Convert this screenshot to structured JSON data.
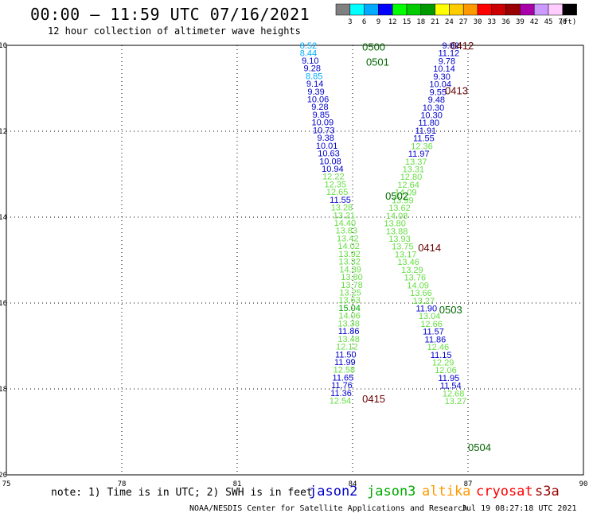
{
  "title": "00:00 – 11:59 UTC 07/16/2021",
  "subtitle": "12 hour collection of altimeter wave heights",
  "note": "note: 1) Time is in UTC; 2) SWH is in feet",
  "credit": "NOAA/NESDIS Center for Satellite Applications and Research",
  "timestamp": "Jul 19 08:27:18 UTC 2021",
  "legend": [
    {
      "label": "jason2",
      "color": "#0000cc"
    },
    {
      "label": "jason3",
      "color": "#00aa00"
    },
    {
      "label": "altika",
      "color": "#ff9900"
    },
    {
      "label": "cryosat",
      "color": "#ff0000"
    },
    {
      "label": "s3a",
      "color": "#990000"
    }
  ],
  "colorbar": {
    "unit": "(ft)",
    "ticks": [
      "3",
      "6",
      "9",
      "12",
      "15",
      "18",
      "21",
      "24",
      "27",
      "30",
      "33",
      "36",
      "39",
      "42",
      "45",
      "70"
    ],
    "colors": [
      "#808080",
      "#00ffff",
      "#00aaff",
      "#0000ff",
      "#00ff00",
      "#00cc00",
      "#009900",
      "#ffff00",
      "#ffcc00",
      "#ff9900",
      "#ff0000",
      "#cc0000",
      "#990000",
      "#aa00aa",
      "#cc99ff",
      "#ffccff",
      "#000000"
    ]
  },
  "chart_data": {
    "type": "scatter",
    "title": "00:00 – 11:59 UTC 07/16/2021",
    "subtitle": "12 hour collection of altimeter wave heights",
    "xlabel": "",
    "ylabel": "",
    "xlim": [
      75,
      90
    ],
    "ylim": [
      -20,
      -10
    ],
    "x_ticks": [
      "75",
      "78",
      "81",
      "84",
      "87",
      "90"
    ],
    "y_ticks": [
      "-10",
      "-12",
      "-14",
      "-16",
      "-18",
      "-20"
    ],
    "grid": true,
    "legend_position": "bottom",
    "time_labels": [
      {
        "text": "0500",
        "x": 84.55,
        "y": -10.03,
        "color": "#006600"
      },
      {
        "text": "0501",
        "x": 84.65,
        "y": -10.38,
        "color": "#006600"
      },
      {
        "text": "0502",
        "x": 85.15,
        "y": -13.5,
        "color": "#006600"
      },
      {
        "text": "0503",
        "x": 86.55,
        "y": -16.15,
        "color": "#006600"
      },
      {
        "text": "0504",
        "x": 87.3,
        "y": -19.35,
        "color": "#006600"
      },
      {
        "text": "0412",
        "x": 86.85,
        "y": -10.0,
        "color": "#660000"
      },
      {
        "text": "0413",
        "x": 86.7,
        "y": -11.05,
        "color": "#660000"
      },
      {
        "text": "0414",
        "x": 86.0,
        "y": -14.7,
        "color": "#660000"
      },
      {
        "text": "0415",
        "x": 84.55,
        "y": -18.22,
        "color": "#660000"
      }
    ],
    "series": [
      {
        "name": "Pass 0500-0504 (western track)",
        "points": [
          {
            "x": 82.85,
            "y": -10.0,
            "v": "8.52",
            "color": "#00aaff"
          },
          {
            "x": 82.85,
            "y": -10.18,
            "v": "8.44",
            "color": "#00aaff"
          },
          {
            "x": 82.9,
            "y": -10.35,
            "v": "9.10",
            "color": "#0000cc"
          },
          {
            "x": 82.95,
            "y": -10.53,
            "v": "9.28",
            "color": "#0000cc"
          },
          {
            "x": 83.0,
            "y": -10.71,
            "v": "8.85",
            "color": "#00aaff"
          },
          {
            "x": 83.02,
            "y": -10.89,
            "v": "9.14",
            "color": "#0000cc"
          },
          {
            "x": 83.05,
            "y": -11.07,
            "v": "9.39",
            "color": "#0000cc"
          },
          {
            "x": 83.1,
            "y": -11.25,
            "v": "10.06",
            "color": "#0000cc"
          },
          {
            "x": 83.15,
            "y": -11.43,
            "v": "9.28",
            "color": "#0000cc"
          },
          {
            "x": 83.18,
            "y": -11.61,
            "v": "9.85",
            "color": "#0000cc"
          },
          {
            "x": 83.22,
            "y": -11.79,
            "v": "10.09",
            "color": "#0000cc"
          },
          {
            "x": 83.25,
            "y": -11.97,
            "v": "10.73",
            "color": "#0000cc"
          },
          {
            "x": 83.3,
            "y": -12.15,
            "v": "9.38",
            "color": "#0000cc"
          },
          {
            "x": 83.33,
            "y": -12.33,
            "v": "10.01",
            "color": "#0000cc"
          },
          {
            "x": 83.38,
            "y": -12.51,
            "v": "10.63",
            "color": "#0000cc"
          },
          {
            "x": 83.42,
            "y": -12.69,
            "v": "10.08",
            "color": "#0000cc"
          },
          {
            "x": 83.48,
            "y": -12.87,
            "v": "10.94",
            "color": "#0000cc"
          },
          {
            "x": 83.5,
            "y": -13.05,
            "v": "12.22",
            "color": "#66dd44"
          },
          {
            "x": 83.55,
            "y": -13.23,
            "v": "12.35",
            "color": "#66dd44"
          },
          {
            "x": 83.6,
            "y": -13.41,
            "v": "12.65",
            "color": "#66dd44"
          },
          {
            "x": 83.68,
            "y": -13.59,
            "v": "11.55",
            "color": "#0000cc"
          },
          {
            "x": 83.72,
            "y": -13.77,
            "v": "13.28",
            "color": "#66dd44"
          },
          {
            "x": 83.78,
            "y": -13.95,
            "v": "13.21",
            "color": "#66dd44"
          },
          {
            "x": 83.8,
            "y": -14.13,
            "v": "14.40",
            "color": "#66dd44"
          },
          {
            "x": 83.84,
            "y": -14.31,
            "v": "13.83",
            "color": "#66dd44"
          },
          {
            "x": 83.87,
            "y": -14.49,
            "v": "13.42",
            "color": "#66dd44"
          },
          {
            "x": 83.9,
            "y": -14.67,
            "v": "14.02",
            "color": "#66dd44"
          },
          {
            "x": 83.92,
            "y": -14.85,
            "v": "13.92",
            "color": "#66dd44"
          },
          {
            "x": 83.92,
            "y": -15.03,
            "v": "13.32",
            "color": "#66dd44"
          },
          {
            "x": 83.94,
            "y": -15.21,
            "v": "14.39",
            "color": "#66dd44"
          },
          {
            "x": 83.98,
            "y": -15.39,
            "v": "13.80",
            "color": "#66dd44"
          },
          {
            "x": 83.98,
            "y": -15.57,
            "v": "13.78",
            "color": "#66dd44"
          },
          {
            "x": 83.94,
            "y": -15.75,
            "v": "13.25",
            "color": "#66dd44"
          },
          {
            "x": 83.92,
            "y": -15.93,
            "v": "13.63",
            "color": "#66dd44"
          },
          {
            "x": 83.92,
            "y": -16.11,
            "v": "15.04",
            "color": "#00aa00"
          },
          {
            "x": 83.92,
            "y": -16.29,
            "v": "14.06",
            "color": "#66dd44"
          },
          {
            "x": 83.9,
            "y": -16.47,
            "v": "13.38",
            "color": "#66dd44"
          },
          {
            "x": 83.9,
            "y": -16.65,
            "v": "11.86",
            "color": "#0000cc"
          },
          {
            "x": 83.9,
            "y": -16.83,
            "v": "13.48",
            "color": "#66dd44"
          },
          {
            "x": 83.85,
            "y": -17.01,
            "v": "12.12",
            "color": "#66dd44"
          },
          {
            "x": 83.82,
            "y": -17.19,
            "v": "11.50",
            "color": "#0000cc"
          },
          {
            "x": 83.8,
            "y": -17.37,
            "v": "11.99",
            "color": "#0000cc"
          },
          {
            "x": 83.78,
            "y": -17.55,
            "v": "12.58",
            "color": "#66dd44"
          },
          {
            "x": 83.75,
            "y": -17.73,
            "v": "11.65",
            "color": "#0000cc"
          },
          {
            "x": 83.72,
            "y": -17.91,
            "v": "11.76",
            "color": "#0000cc"
          },
          {
            "x": 83.7,
            "y": -18.09,
            "v": "11.36",
            "color": "#0000cc"
          },
          {
            "x": 83.68,
            "y": -18.27,
            "v": "12.54",
            "color": "#66dd44"
          }
        ]
      },
      {
        "name": "Pass 0412-0415 (eastern track)",
        "points": [
          {
            "x": 86.55,
            "y": -10.0,
            "v": "9.82",
            "color": "#0000cc"
          },
          {
            "x": 86.5,
            "y": -10.18,
            "v": "11.12",
            "color": "#0000cc"
          },
          {
            "x": 86.45,
            "y": -10.36,
            "v": "9.78",
            "color": "#0000cc"
          },
          {
            "x": 86.38,
            "y": -10.54,
            "v": "10.14",
            "color": "#0000cc"
          },
          {
            "x": 86.32,
            "y": -10.72,
            "v": "9.30",
            "color": "#0000cc"
          },
          {
            "x": 86.28,
            "y": -10.9,
            "v": "10.04",
            "color": "#0000cc"
          },
          {
            "x": 86.22,
            "y": -11.08,
            "v": "9.55",
            "color": "#0000cc"
          },
          {
            "x": 86.18,
            "y": -11.26,
            "v": "9.48",
            "color": "#0000cc"
          },
          {
            "x": 86.1,
            "y": -11.44,
            "v": "10.30",
            "color": "#0000cc"
          },
          {
            "x": 86.05,
            "y": -11.62,
            "v": "10.30",
            "color": "#0000cc"
          },
          {
            "x": 85.98,
            "y": -11.8,
            "v": "11.80",
            "color": "#0000cc"
          },
          {
            "x": 85.9,
            "y": -11.98,
            "v": "11.91",
            "color": "#0000cc"
          },
          {
            "x": 85.85,
            "y": -12.16,
            "v": "11.55",
            "color": "#0000cc"
          },
          {
            "x": 85.8,
            "y": -12.34,
            "v": "12.36",
            "color": "#66dd44"
          },
          {
            "x": 85.72,
            "y": -12.52,
            "v": "11.97",
            "color": "#0000cc"
          },
          {
            "x": 85.65,
            "y": -12.7,
            "v": "13.37",
            "color": "#66dd44"
          },
          {
            "x": 85.58,
            "y": -12.88,
            "v": "13.31",
            "color": "#66dd44"
          },
          {
            "x": 85.52,
            "y": -13.06,
            "v": "12.80",
            "color": "#66dd44"
          },
          {
            "x": 85.45,
            "y": -13.24,
            "v": "12.64",
            "color": "#66dd44"
          },
          {
            "x": 85.38,
            "y": -13.42,
            "v": "14.09",
            "color": "#66dd44"
          },
          {
            "x": 85.3,
            "y": -13.6,
            "v": "13.99",
            "color": "#66dd44"
          },
          {
            "x": 85.22,
            "y": -13.78,
            "v": "13.62",
            "color": "#66dd44"
          },
          {
            "x": 85.15,
            "y": -13.96,
            "v": "14.08",
            "color": "#66dd44"
          },
          {
            "x": 85.1,
            "y": -14.14,
            "v": "13.80",
            "color": "#66dd44"
          },
          {
            "x": 85.15,
            "y": -14.32,
            "v": "13.88",
            "color": "#66dd44"
          },
          {
            "x": 85.22,
            "y": -14.5,
            "v": "13.93",
            "color": "#66dd44"
          },
          {
            "x": 85.3,
            "y": -14.68,
            "v": "13.75",
            "color": "#66dd44"
          },
          {
            "x": 85.38,
            "y": -14.86,
            "v": "13.17",
            "color": "#66dd44"
          },
          {
            "x": 85.45,
            "y": -15.04,
            "v": "13.46",
            "color": "#66dd44"
          },
          {
            "x": 85.55,
            "y": -15.22,
            "v": "13.29",
            "color": "#66dd44"
          },
          {
            "x": 85.62,
            "y": -15.4,
            "v": "13.76",
            "color": "#66dd44"
          },
          {
            "x": 85.7,
            "y": -15.58,
            "v": "14.09",
            "color": "#66dd44"
          },
          {
            "x": 85.78,
            "y": -15.76,
            "v": "13.66",
            "color": "#66dd44"
          },
          {
            "x": 85.85,
            "y": -15.94,
            "v": "13.27",
            "color": "#66dd44"
          },
          {
            "x": 85.92,
            "y": -16.12,
            "v": "11.90",
            "color": "#0000cc"
          },
          {
            "x": 86.0,
            "y": -16.3,
            "v": "13.04",
            "color": "#66dd44"
          },
          {
            "x": 86.05,
            "y": -16.48,
            "v": "12.66",
            "color": "#66dd44"
          },
          {
            "x": 86.1,
            "y": -16.66,
            "v": "11.57",
            "color": "#0000cc"
          },
          {
            "x": 86.15,
            "y": -16.84,
            "v": "11.86",
            "color": "#0000cc"
          },
          {
            "x": 86.22,
            "y": -17.02,
            "v": "12.46",
            "color": "#66dd44"
          },
          {
            "x": 86.3,
            "y": -17.2,
            "v": "11.15",
            "color": "#0000cc"
          },
          {
            "x": 86.35,
            "y": -17.38,
            "v": "12.29",
            "color": "#66dd44"
          },
          {
            "x": 86.42,
            "y": -17.56,
            "v": "12.06",
            "color": "#66dd44"
          },
          {
            "x": 86.5,
            "y": -17.74,
            "v": "11.95",
            "color": "#0000cc"
          },
          {
            "x": 86.55,
            "y": -17.92,
            "v": "11.54",
            "color": "#0000cc"
          },
          {
            "x": 86.62,
            "y": -18.1,
            "v": "12.68",
            "color": "#66dd44"
          },
          {
            "x": 86.68,
            "y": -18.28,
            "v": "13.27",
            "color": "#66dd44"
          }
        ]
      }
    ]
  }
}
